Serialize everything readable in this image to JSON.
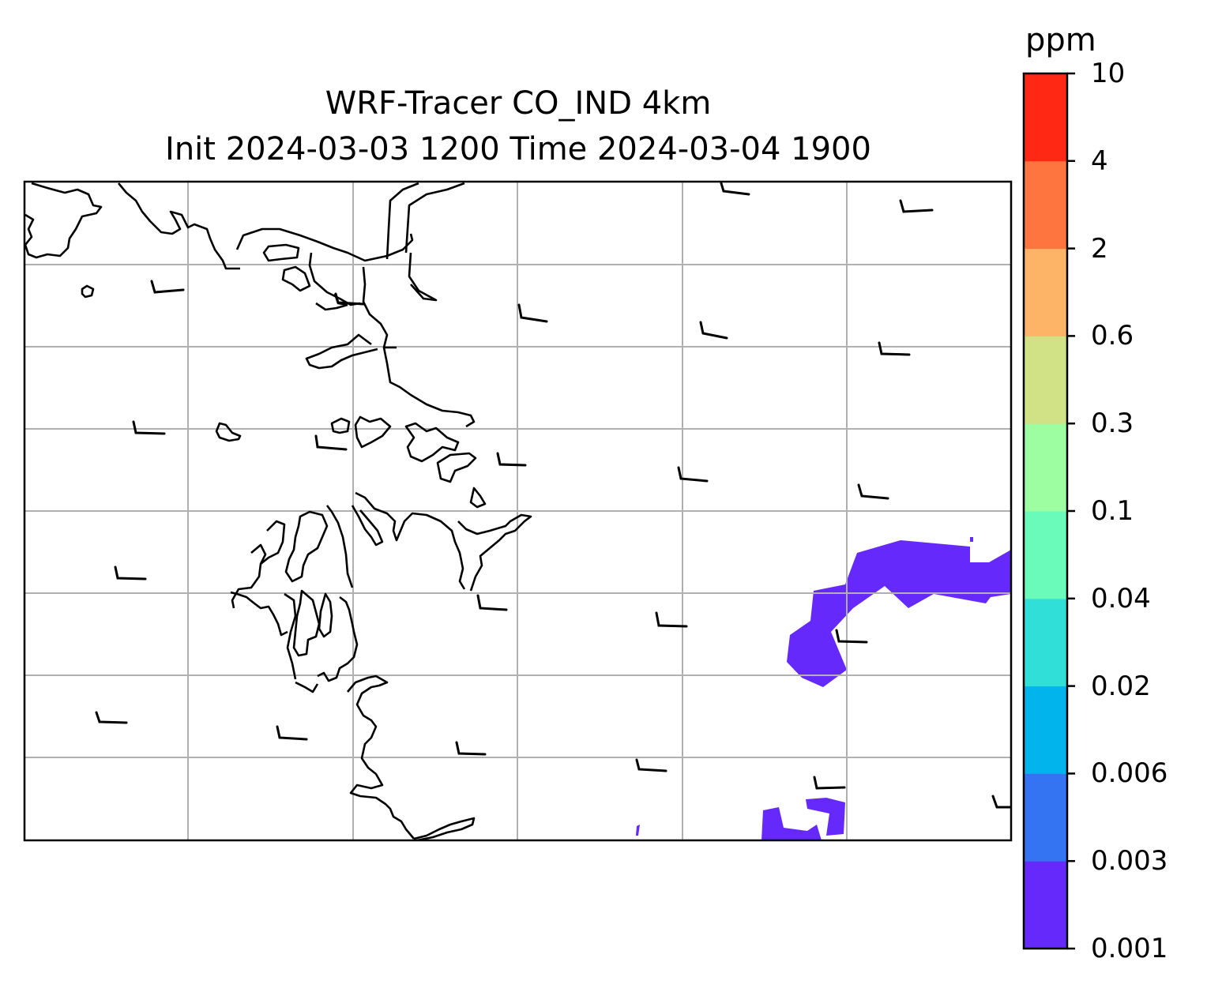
{
  "title": {
    "line1": "WRF-Tracer CO_IND 4km",
    "line2": "Init 2024-03-03 1200 Time 2024-03-04 1900"
  },
  "colorbar": {
    "unit": "ppm",
    "levels": [
      "0.001",
      "0.003",
      "0.006",
      "0.02",
      "0.04",
      "0.1",
      "0.3",
      "0.6",
      "2",
      "4",
      "10"
    ],
    "colors": [
      "#6629fb",
      "#3473f2",
      "#02b4ec",
      "#30e0d8",
      "#6afbbb",
      "#9cfda1",
      "#d1e286",
      "#fdb466",
      "#fe7540",
      "#fe2814"
    ]
  },
  "map": {
    "gridlines": true,
    "gridline_color": "#b0b0b0",
    "coastline_color": "#000000",
    "plume_color": "#6629fb",
    "wind_barb_icon": "wind-barb-icon"
  }
}
